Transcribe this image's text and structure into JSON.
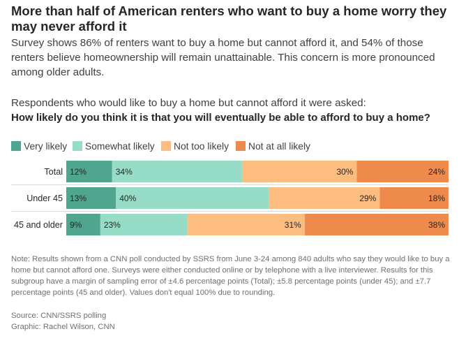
{
  "header": {
    "title": "More than half of American renters who want to buy a home worry they may never afford it",
    "subtitle": "Survey shows 86% of renters want to buy a home but cannot afford it, and 54% of those renters believe homeownership will remain unattainable. This concern is more pronounced among older adults.",
    "question_intro": "Respondents who would like to buy a home but cannot afford it were asked:",
    "question": "How likely do you think it is that you will eventually be able to afford to buy a home?"
  },
  "footer": {
    "note": "Note: Results shown from a CNN poll conducted by SSRS from June 3-24 among 840 adults who say they would like to buy a home but cannot afford one. Surveys were either conducted online or by telephone with a live interviewer. Results for this subgroup have a margin of sampling error of ±4.6 percentage points (Total); ±5.8 percentage points (under 45); and ±7.7 percentage points (45 and older). Values don't equal 100% due to rounding.",
    "source": "Source: CNN/SSRS polling",
    "graphic": "Graphic: Rachel Wilson, CNN"
  },
  "chart_data": {
    "type": "bar",
    "orientation": "horizontal",
    "stacked": true,
    "categories": [
      "Total",
      "Under 45",
      "45 and older"
    ],
    "series": [
      {
        "name": "Very likely",
        "color": "#4fa58d",
        "values": [
          12,
          13,
          9
        ]
      },
      {
        "name": "Somewhat likely",
        "color": "#97dcc7",
        "values": [
          34,
          40,
          23
        ]
      },
      {
        "name": "Not too likely",
        "color": "#fdbd81",
        "values": [
          30,
          29,
          31
        ]
      },
      {
        "name": "Not at all likely",
        "color": "#ef8a4d",
        "values": [
          24,
          18,
          38
        ]
      }
    ],
    "legend_position": "top-left",
    "value_suffix": "%",
    "grid": false
  }
}
